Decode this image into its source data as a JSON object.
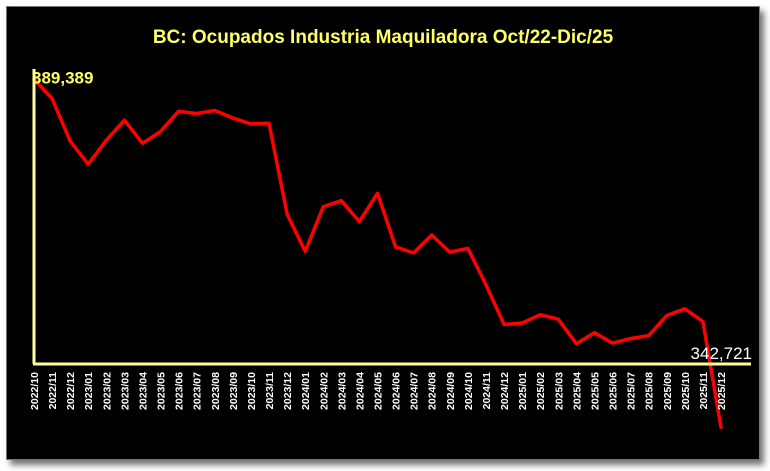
{
  "chart_data": {
    "type": "line",
    "title": "BC: Ocupados Industria Maquiladora Oct/22-Dic/25",
    "xlabel": "",
    "ylabel": "",
    "categories": [
      "2022/10",
      "2022/11",
      "2022/12",
      "2023/01",
      "2023/02",
      "2023/03",
      "2023/04",
      "2023/05",
      "2023/06",
      "2023/07",
      "2023/08",
      "2023/09",
      "2023/10",
      "2023/11",
      "2023/12",
      "2024/01",
      "2024/02",
      "2024/03",
      "2024/04",
      "2024/05",
      "2024/06",
      "2024/07",
      "2024/08",
      "2024/09",
      "2024/10",
      "2024/11",
      "2024/12",
      "2025/01",
      "2025/02",
      "2025/03",
      "2025/04",
      "2025/05",
      "2025/06",
      "2025/07",
      "2025/08",
      "2025/09",
      "2025/10",
      "2025/11",
      "2025/12"
    ],
    "series": [
      {
        "values": [
          389389,
          386800,
          381100,
          378000,
          381200,
          383900,
          380800,
          382400,
          385100,
          384800,
          385200,
          384200,
          383400,
          383500,
          371300,
          366300,
          372300,
          373100,
          370300,
          374100,
          366900,
          366100,
          368500,
          366200,
          366700,
          361800,
          356500,
          356700,
          357800,
          357200,
          353900,
          355400,
          354000,
          354600,
          355000,
          357700,
          358600,
          356900,
          342721
        ]
      }
    ],
    "data_labels": {
      "first": "389,389",
      "last": "342,721"
    },
    "ylim": [
      352000,
      390500
    ],
    "grid": false,
    "legend": "none",
    "colors": {
      "line": "#ff0000",
      "axis": "#ffff99",
      "title": "#ffff66",
      "background": "#000000"
    }
  }
}
